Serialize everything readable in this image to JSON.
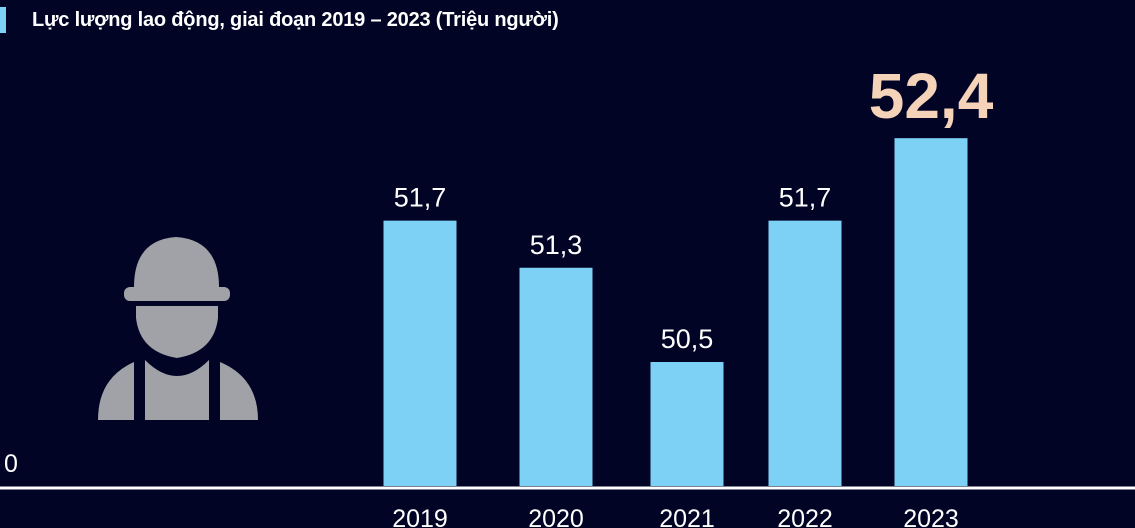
{
  "title": "Lực lượng lao động, giai đoạn 2019 – 2023 (Triệu người)",
  "colors": {
    "background": "#020426",
    "bar": "#7dd1f5",
    "highlight_label": "#f4d3b9",
    "icon": "#a0a2a8",
    "axis": "#ffffff"
  },
  "icon": "construction-worker-icon",
  "chart_data": {
    "type": "bar",
    "title": "Lực lượng lao động, giai đoạn 2019 – 2023 (Triệu người)",
    "categories": [
      "2019",
      "2020",
      "2021",
      "2022",
      "2023"
    ],
    "values": [
      51.7,
      51.3,
      50.5,
      51.7,
      52.4
    ],
    "value_labels": [
      "51,7",
      "51,3",
      "50,5",
      "51,7",
      "52,4"
    ],
    "highlight_index": 4,
    "y_axis_label": "0",
    "xlabel": "",
    "ylabel": "",
    "grid": false,
    "legend": "none"
  }
}
